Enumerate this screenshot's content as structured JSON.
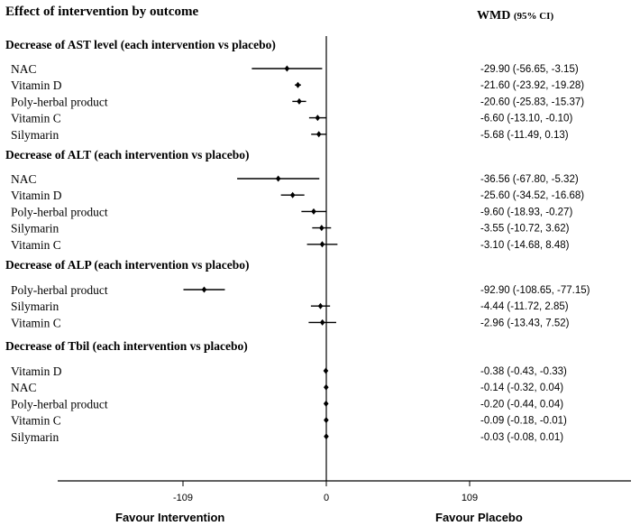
{
  "title": "Effect of intervention by outcome",
  "wmd_header": {
    "main": "WMD ",
    "sub": "(95% CI)"
  },
  "chart_data": {
    "type": "forest",
    "title": "Effect of intervention by outcome",
    "xlim": [
      -109,
      109
    ],
    "xticks": [
      "-109",
      "0",
      "109"
    ],
    "xlabel_left": "Favour Intervention",
    "xlabel_right": "Favour Placebo",
    "groups": [
      {
        "name": "Decrease of AST level (each intervention  vs placebo)",
        "rows": [
          {
            "label": "NAC",
            "est": -29.9,
            "lo": -56.65,
            "hi": -3.15,
            "text": "-29.90 (-56.65, -3.15)"
          },
          {
            "label": "Vitamin  D",
            "est": -21.6,
            "lo": -23.92,
            "hi": -19.28,
            "text": "-21.60 (-23.92, -19.28)"
          },
          {
            "label": "Poly-herbal product",
            "est": -20.6,
            "lo": -25.83,
            "hi": -15.37,
            "text": "-20.60 (-25.83, -15.37)"
          },
          {
            "label": "Vitamin  C",
            "est": -6.6,
            "lo": -13.1,
            "hi": -0.1,
            "text": "-6.60 (-13.10, -0.10)"
          },
          {
            "label": "Silymarin",
            "est": -5.68,
            "lo": -11.49,
            "hi": 0.13,
            "text": "-5.68 (-11.49, 0.13)"
          }
        ]
      },
      {
        "name": "Decrease of ALT  (each intervention  vs placebo)",
        "rows": [
          {
            "label": "NAC",
            "est": -36.56,
            "lo": -67.8,
            "hi": -5.32,
            "text": "-36.56 (-67.80, -5.32)"
          },
          {
            "label": "Vitamin  D",
            "est": -25.6,
            "lo": -34.52,
            "hi": -16.68,
            "text": "-25.60 (-34.52, -16.68)"
          },
          {
            "label": "Poly-herbal  product",
            "est": -9.6,
            "lo": -18.93,
            "hi": -0.27,
            "text": "-9.60 (-18.93, -0.27)"
          },
          {
            "label": "Silymarin",
            "est": -3.55,
            "lo": -10.72,
            "hi": 3.62,
            "text": "-3.55 (-10.72, 3.62)"
          },
          {
            "label": "Vitamin  C",
            "est": -3.1,
            "lo": -14.68,
            "hi": 8.48,
            "text": "-3.10 (-14.68, 8.48)"
          }
        ]
      },
      {
        "name": "Decrease of ALP  (each intervention  vs placebo)",
        "rows": [
          {
            "label": "Poly-herbal  product",
            "est": -92.9,
            "lo": -108.65,
            "hi": -77.15,
            "text": "-92.90 (-108.65, -77.15)"
          },
          {
            "label": "Silymarin",
            "est": -4.44,
            "lo": -11.72,
            "hi": 2.85,
            "text": "-4.44 (-11.72, 2.85)"
          },
          {
            "label": "Vitamin  C",
            "est": -2.96,
            "lo": -13.43,
            "hi": 7.52,
            "text": "-2.96 (-13.43, 7.52)"
          }
        ]
      },
      {
        "name": "Decrease of Tbil (each intervention  vs placebo)",
        "rows": [
          {
            "label": "Vitamin  D",
            "est": -0.38,
            "lo": -0.43,
            "hi": -0.33,
            "text": "-0.38 (-0.43, -0.33)"
          },
          {
            "label": "NAC",
            "est": -0.14,
            "lo": -0.32,
            "hi": 0.04,
            "text": "-0.14 (-0.32, 0.04)"
          },
          {
            "label": "Poly-herbal product",
            "est": -0.2,
            "lo": -0.44,
            "hi": 0.04,
            "text": "-0.20 (-0.44, 0.04)"
          },
          {
            "label": "Vitamin  C",
            "est": -0.09,
            "lo": -0.18,
            "hi": -0.01,
            "text": "-0.09 (-0.18, -0.01)"
          },
          {
            "label": "Silymarin",
            "est": -0.03,
            "lo": -0.08,
            "hi": 0.01,
            "text": "-0.03 (-0.08, 0.01)"
          }
        ]
      }
    ]
  }
}
